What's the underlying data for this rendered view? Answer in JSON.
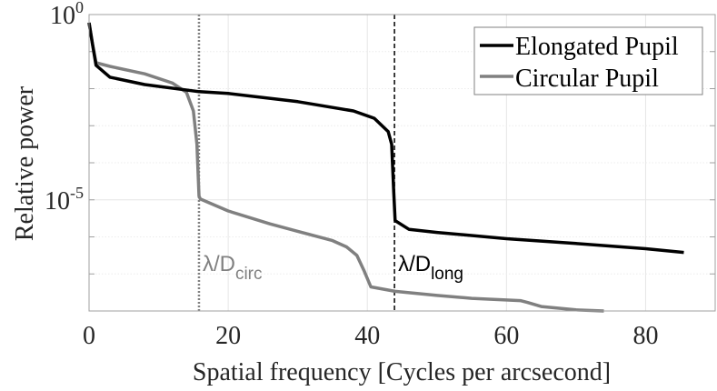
{
  "chart_data": {
    "type": "line",
    "title": "",
    "xlabel": "Spatial frequency [Cycles per arcsecond]",
    "ylabel": "Relative power",
    "xlim": [
      0,
      90
    ],
    "ylim": [
      1e-08,
      1
    ],
    "yscale": "log",
    "grid": true,
    "x_ticks": [
      0,
      20,
      40,
      60,
      80
    ],
    "x_tick_labels": [
      "0",
      "20",
      "40",
      "60",
      "80"
    ],
    "y_ticks": [
      {
        "base": "10",
        "exp": "0",
        "value": 1
      },
      {
        "base": "10",
        "exp": "-5",
        "value": 1e-05
      }
    ],
    "legend": {
      "placement": "top-right"
    },
    "series": [
      {
        "name": "Elongated Pupil",
        "color": "#000000",
        "x": [
          0,
          0.5,
          1,
          3,
          8,
          15.8,
          20,
          30,
          38,
          41,
          43,
          43.5,
          43.8,
          44,
          46,
          50,
          60,
          70,
          80,
          85.5
        ],
        "log10_y": [
          -0.22,
          -0.8,
          -1.37,
          -1.69,
          -1.89,
          -2.08,
          -2.13,
          -2.35,
          -2.6,
          -2.8,
          -3.16,
          -3.5,
          -4.8,
          -5.56,
          -5.8,
          -5.88,
          -6.05,
          -6.18,
          -6.32,
          -6.42
        ]
      },
      {
        "name": "Circular Pupil",
        "color": "#808080",
        "x": [
          0,
          0.5,
          1,
          3,
          8,
          12,
          14,
          15,
          15.5,
          15.8,
          16,
          20,
          26,
          30,
          35,
          37,
          38.5,
          39.5,
          40.5,
          44,
          50,
          55,
          62,
          63,
          65,
          70,
          74
        ],
        "log10_y": [
          -0.22,
          -0.8,
          -1.3,
          -1.4,
          -1.6,
          -1.85,
          -2.1,
          -2.6,
          -3.5,
          -4.9,
          -4.98,
          -5.3,
          -5.65,
          -5.85,
          -6.1,
          -6.27,
          -6.5,
          -6.9,
          -7.35,
          -7.47,
          -7.58,
          -7.66,
          -7.72,
          -7.77,
          -7.88,
          -7.97,
          -8.0
        ]
      }
    ],
    "annotations": [
      {
        "type": "vline",
        "x": 15.8,
        "style": "dotted",
        "color": "#808080",
        "label": "λ/D",
        "sub": "circ"
      },
      {
        "type": "vline",
        "x": 43.9,
        "style": "dashed",
        "color": "#000000",
        "label": "λ/D",
        "sub": "long"
      }
    ]
  }
}
